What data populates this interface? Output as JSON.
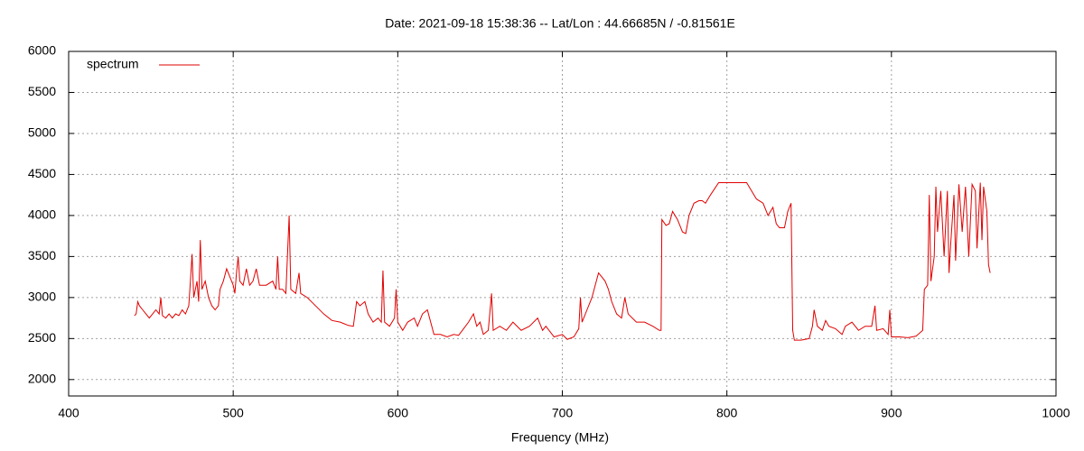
{
  "chart_data": {
    "type": "line",
    "title": "Date: 2021-09-18 15:38:36  --  Lat/Lon : 44.66685N / -0.81561E",
    "x_label": "Frequency (MHz)",
    "xlim": [
      400,
      1000
    ],
    "xticks": [
      400,
      500,
      600,
      700,
      800,
      900,
      1000
    ],
    "ylim": [
      1800,
      6000
    ],
    "yticks": [
      2000,
      2500,
      3000,
      3500,
      4000,
      4500,
      5000,
      5500,
      6000
    ],
    "grid": true,
    "legend": "top-left",
    "series": [
      {
        "name": "spectrum",
        "color": "#e00000",
        "x": [
          440,
          441,
          442,
          443,
          445,
          447,
          449,
          451,
          453,
          455,
          456,
          457,
          459,
          461,
          463,
          465,
          467,
          469,
          471,
          473,
          474,
          475,
          476,
          478,
          479,
          480,
          481,
          483,
          485,
          487,
          489,
          491,
          492,
          494,
          496,
          498,
          500,
          501,
          502,
          503,
          504,
          506,
          508,
          510,
          512,
          514,
          516,
          520,
          524,
          526,
          527,
          528,
          530,
          532,
          534,
          535,
          538,
          540,
          541,
          545,
          550,
          555,
          560,
          565,
          570,
          573,
          575,
          577,
          580,
          582,
          585,
          588,
          590,
          591,
          592,
          595,
          598,
          599,
          600,
          603,
          606,
          610,
          612,
          615,
          618,
          620,
          622,
          626,
          630,
          634,
          637,
          640,
          643,
          646,
          648,
          650,
          652,
          655,
          657,
          658,
          662,
          666,
          670,
          675,
          680,
          685,
          688,
          690,
          695,
          700,
          703,
          707,
          710,
          711,
          712,
          715,
          718,
          720,
          722,
          724,
          726,
          728,
          730,
          733,
          736,
          738,
          740,
          745,
          750,
          755,
          759,
          760,
          760.5,
          763,
          765,
          767,
          770,
          773,
          775,
          777,
          780,
          783,
          785,
          787,
          790,
          795,
          800,
          805,
          812,
          815,
          818,
          822,
          825,
          828,
          830,
          832,
          835,
          837,
          839,
          840,
          841,
          845,
          850,
          852,
          853,
          855,
          858,
          860,
          862,
          866,
          870,
          872,
          876,
          880,
          884,
          888,
          890,
          891,
          895,
          898,
          899,
          900,
          905,
          910,
          915,
          919,
          920,
          922,
          923,
          924,
          926,
          927,
          928,
          930,
          932,
          934,
          935,
          936,
          938,
          939,
          941,
          943,
          945,
          947,
          949,
          951,
          952,
          954,
          955,
          956,
          957,
          958,
          959,
          960
        ],
        "values": [
          2780,
          2800,
          2950,
          2900,
          2850,
          2800,
          2750,
          2800,
          2850,
          2800,
          3000,
          2780,
          2750,
          2800,
          2750,
          2800,
          2780,
          2850,
          2800,
          2900,
          3200,
          3530,
          3000,
          3200,
          2950,
          3700,
          3100,
          3200,
          3000,
          2900,
          2850,
          2900,
          3100,
          3200,
          3350,
          3250,
          3150,
          3050,
          3300,
          3500,
          3200,
          3150,
          3350,
          3150,
          3200,
          3350,
          3150,
          3150,
          3200,
          3100,
          3500,
          3100,
          3100,
          3050,
          4000,
          3100,
          3050,
          3300,
          3050,
          3000,
          2900,
          2800,
          2720,
          2700,
          2660,
          2650,
          2950,
          2900,
          2950,
          2800,
          2700,
          2750,
          2700,
          3330,
          2700,
          2650,
          2750,
          3100,
          2700,
          2600,
          2700,
          2750,
          2650,
          2800,
          2850,
          2700,
          2550,
          2550,
          2520,
          2550,
          2540,
          2620,
          2700,
          2800,
          2650,
          2700,
          2550,
          2600,
          3050,
          2600,
          2650,
          2600,
          2700,
          2600,
          2650,
          2750,
          2600,
          2650,
          2520,
          2550,
          2490,
          2520,
          2620,
          3000,
          2700,
          2850,
          3000,
          3150,
          3300,
          3250,
          3200,
          3100,
          2950,
          2800,
          2750,
          3000,
          2800,
          2700,
          2700,
          2650,
          2600,
          2600,
          3950,
          3880,
          3900,
          4050,
          3950,
          3800,
          3780,
          4000,
          4150,
          4180,
          4180,
          4150,
          4250,
          4400,
          4400,
          4400,
          4400,
          4300,
          4200,
          4150,
          4000,
          4100,
          3900,
          3850,
          3850,
          4050,
          4150,
          2600,
          2480,
          2480,
          2500,
          2650,
          2850,
          2650,
          2600,
          2720,
          2650,
          2620,
          2550,
          2650,
          2700,
          2600,
          2650,
          2650,
          2900,
          2600,
          2620,
          2550,
          2850,
          2520,
          2520,
          2510,
          2530,
          2600,
          3100,
          3150,
          4250,
          3200,
          3500,
          4350,
          3800,
          4300,
          3500,
          4300,
          3300,
          3650,
          4250,
          3450,
          4380,
          3800,
          4350,
          3500,
          4380,
          4300,
          3600,
          4400,
          3700,
          4350,
          4200,
          4050,
          3400,
          3300
        ]
      }
    ]
  }
}
